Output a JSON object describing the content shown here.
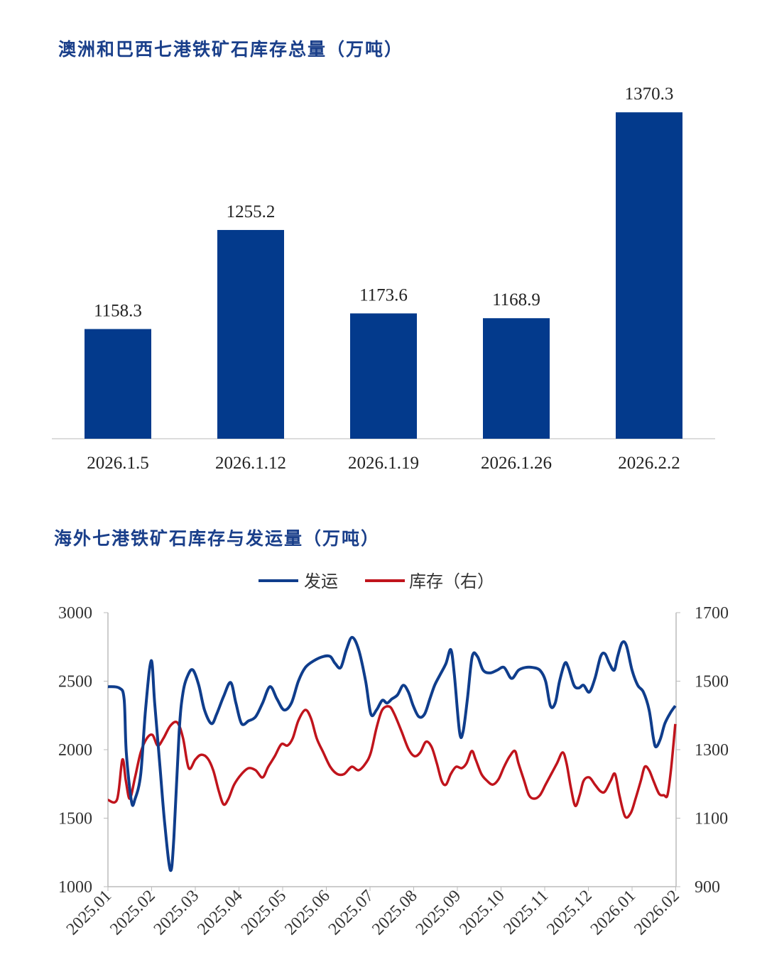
{
  "colors": {
    "bar": "#033a8c",
    "ship": "#0f3d8c",
    "stock": "#c0141c",
    "title": "#1a3f8a"
  },
  "chart_data": [
    {
      "type": "bar",
      "title": "澳洲和巴西七港铁矿石库存总量（万吨）",
      "categories": [
        "2026.1.5",
        "2026.1.12",
        "2026.1.19",
        "2026.1.26",
        "2026.2.2"
      ],
      "values": [
        1158.3,
        1255.2,
        1173.6,
        1168.9,
        1370.3
      ],
      "value_labels": [
        "1158.3",
        "1255.2",
        "1173.6",
        "1168.9",
        "1370.3"
      ],
      "ylim": [
        1051,
        1400
      ],
      "xlabel": "",
      "ylabel": ""
    },
    {
      "type": "line",
      "title": "海外七港铁矿石库存与发运量（万吨）",
      "legend": [
        "发运",
        "库存（右）"
      ],
      "legend_position": "top-center",
      "x_ticks": [
        "2025.01",
        "2025.02",
        "2025.03",
        "2025.04",
        "2025.05",
        "2025.06",
        "2025.07",
        "2025.08",
        "2025.09",
        "2025.10",
        "2025.11",
        "2025.12",
        "2026.01",
        "2026.02"
      ],
      "y_left": {
        "ticks": [
          "3000",
          "2500",
          "2000",
          "1500",
          "1000"
        ],
        "lim": [
          1000,
          3000
        ]
      },
      "y_right": {
        "ticks": [
          "1700",
          "1500",
          "1300",
          "1100",
          "900"
        ],
        "lim": [
          900,
          1700
        ]
      },
      "x_unit": "months since 2025.01",
      "series": [
        {
          "name": "发运",
          "axis": "left",
          "points": [
            [
              0,
              2460
            ],
            [
              0.26,
              2450
            ],
            [
              0.37,
              2370
            ],
            [
              0.42,
              1980
            ],
            [
              0.54,
              1620
            ],
            [
              0.62,
              1640
            ],
            [
              0.75,
              1820
            ],
            [
              0.86,
              2290
            ],
            [
              0.99,
              2650
            ],
            [
              1.07,
              2340
            ],
            [
              1.19,
              1880
            ],
            [
              1.3,
              1460
            ],
            [
              1.43,
              1120
            ],
            [
              1.51,
              1360
            ],
            [
              1.63,
              2130
            ],
            [
              1.72,
              2420
            ],
            [
              1.84,
              2550
            ],
            [
              1.95,
              2580
            ],
            [
              2.08,
              2470
            ],
            [
              2.21,
              2290
            ],
            [
              2.37,
              2190
            ],
            [
              2.49,
              2260
            ],
            [
              2.65,
              2390
            ],
            [
              2.81,
              2490
            ],
            [
              2.93,
              2340
            ],
            [
              3.06,
              2190
            ],
            [
              3.22,
              2210
            ],
            [
              3.38,
              2240
            ],
            [
              3.54,
              2340
            ],
            [
              3.71,
              2460
            ],
            [
              3.87,
              2370
            ],
            [
              4.03,
              2290
            ],
            [
              4.2,
              2340
            ],
            [
              4.36,
              2500
            ],
            [
              4.52,
              2600
            ],
            [
              4.72,
              2650
            ],
            [
              4.93,
              2680
            ],
            [
              5.09,
              2680
            ],
            [
              5.2,
              2630
            ],
            [
              5.33,
              2600
            ],
            [
              5.46,
              2730
            ],
            [
              5.59,
              2820
            ],
            [
              5.74,
              2730
            ],
            [
              5.9,
              2500
            ],
            [
              6.02,
              2260
            ],
            [
              6.15,
              2290
            ],
            [
              6.28,
              2360
            ],
            [
              6.39,
              2340
            ],
            [
              6.5,
              2370
            ],
            [
              6.63,
              2400
            ],
            [
              6.76,
              2470
            ],
            [
              6.88,
              2420
            ],
            [
              6.99,
              2320
            ],
            [
              7.12,
              2240
            ],
            [
              7.25,
              2260
            ],
            [
              7.37,
              2370
            ],
            [
              7.48,
              2470
            ],
            [
              7.61,
              2550
            ],
            [
              7.74,
              2630
            ],
            [
              7.85,
              2730
            ],
            [
              7.93,
              2550
            ],
            [
              8.05,
              2130
            ],
            [
              8.13,
              2130
            ],
            [
              8.23,
              2370
            ],
            [
              8.34,
              2680
            ],
            [
              8.46,
              2680
            ],
            [
              8.59,
              2580
            ],
            [
              8.75,
              2560
            ],
            [
              8.91,
              2580
            ],
            [
              9.07,
              2600
            ],
            [
              9.24,
              2520
            ],
            [
              9.4,
              2580
            ],
            [
              9.56,
              2600
            ],
            [
              9.72,
              2600
            ],
            [
              9.89,
              2580
            ],
            [
              10.02,
              2500
            ],
            [
              10.13,
              2320
            ],
            [
              10.24,
              2340
            ],
            [
              10.34,
              2500
            ],
            [
              10.46,
              2630
            ],
            [
              10.54,
              2600
            ],
            [
              10.67,
              2470
            ],
            [
              10.78,
              2450
            ],
            [
              10.89,
              2470
            ],
            [
              11.02,
              2420
            ],
            [
              11.15,
              2520
            ],
            [
              11.28,
              2680
            ],
            [
              11.38,
              2700
            ],
            [
              11.48,
              2630
            ],
            [
              11.59,
              2580
            ],
            [
              11.67,
              2680
            ],
            [
              11.77,
              2780
            ],
            [
              11.87,
              2760
            ],
            [
              12.0,
              2580
            ],
            [
              12.13,
              2470
            ],
            [
              12.26,
              2420
            ],
            [
              12.39,
              2290
            ],
            [
              12.49,
              2080
            ],
            [
              12.55,
              2020
            ],
            [
              12.65,
              2080
            ],
            [
              12.75,
              2190
            ],
            [
              12.88,
              2270
            ],
            [
              12.99,
              2320
            ]
          ]
        },
        {
          "name": "库存（右）",
          "axis": "right",
          "points": [
            [
              0,
              1153
            ],
            [
              0.21,
              1155
            ],
            [
              0.33,
              1271
            ],
            [
              0.41,
              1209
            ],
            [
              0.5,
              1157
            ],
            [
              0.62,
              1219
            ],
            [
              0.75,
              1292
            ],
            [
              0.89,
              1333
            ],
            [
              1.02,
              1343
            ],
            [
              1.14,
              1312
            ],
            [
              1.27,
              1333
            ],
            [
              1.43,
              1370
            ],
            [
              1.59,
              1379
            ],
            [
              1.72,
              1333
            ],
            [
              1.85,
              1246
            ],
            [
              2.0,
              1271
            ],
            [
              2.13,
              1285
            ],
            [
              2.28,
              1275
            ],
            [
              2.41,
              1240
            ],
            [
              2.54,
              1178
            ],
            [
              2.65,
              1140
            ],
            [
              2.76,
              1157
            ],
            [
              2.89,
              1198
            ],
            [
              3.06,
              1229
            ],
            [
              3.22,
              1246
            ],
            [
              3.38,
              1240
            ],
            [
              3.54,
              1219
            ],
            [
              3.67,
              1250
            ],
            [
              3.82,
              1281
            ],
            [
              3.97,
              1316
            ],
            [
              4.11,
              1312
            ],
            [
              4.23,
              1333
            ],
            [
              4.36,
              1385
            ],
            [
              4.52,
              1416
            ],
            [
              4.65,
              1391
            ],
            [
              4.78,
              1333
            ],
            [
              4.93,
              1292
            ],
            [
              5.09,
              1250
            ],
            [
              5.25,
              1229
            ],
            [
              5.41,
              1229
            ],
            [
              5.58,
              1250
            ],
            [
              5.74,
              1240
            ],
            [
              5.9,
              1260
            ],
            [
              6.02,
              1292
            ],
            [
              6.15,
              1364
            ],
            [
              6.28,
              1416
            ],
            [
              6.44,
              1426
            ],
            [
              6.55,
              1406
            ],
            [
              6.72,
              1354
            ],
            [
              6.88,
              1302
            ],
            [
              7.02,
              1281
            ],
            [
              7.15,
              1292
            ],
            [
              7.28,
              1323
            ],
            [
              7.41,
              1308
            ],
            [
              7.53,
              1260
            ],
            [
              7.64,
              1209
            ],
            [
              7.74,
              1198
            ],
            [
              7.85,
              1229
            ],
            [
              7.97,
              1250
            ],
            [
              8.1,
              1246
            ],
            [
              8.21,
              1260
            ],
            [
              8.33,
              1296
            ],
            [
              8.42,
              1271
            ],
            [
              8.55,
              1229
            ],
            [
              8.68,
              1209
            ],
            [
              8.81,
              1198
            ],
            [
              8.94,
              1213
            ],
            [
              9.07,
              1250
            ],
            [
              9.2,
              1281
            ],
            [
              9.32,
              1296
            ],
            [
              9.4,
              1260
            ],
            [
              9.53,
              1209
            ],
            [
              9.64,
              1167
            ],
            [
              9.76,
              1157
            ],
            [
              9.89,
              1167
            ],
            [
              10.02,
              1198
            ],
            [
              10.15,
              1229
            ],
            [
              10.28,
              1260
            ],
            [
              10.41,
              1292
            ],
            [
              10.5,
              1260
            ],
            [
              10.6,
              1188
            ],
            [
              10.7,
              1136
            ],
            [
              10.8,
              1167
            ],
            [
              10.89,
              1209
            ],
            [
              11.02,
              1219
            ],
            [
              11.15,
              1198
            ],
            [
              11.28,
              1178
            ],
            [
              11.38,
              1178
            ],
            [
              11.51,
              1209
            ],
            [
              11.61,
              1229
            ],
            [
              11.71,
              1167
            ],
            [
              11.84,
              1105
            ],
            [
              11.97,
              1115
            ],
            [
              12.08,
              1157
            ],
            [
              12.2,
              1209
            ],
            [
              12.29,
              1250
            ],
            [
              12.39,
              1240
            ],
            [
              12.49,
              1209
            ],
            [
              12.62,
              1171
            ],
            [
              12.73,
              1167
            ],
            [
              12.81,
              1167
            ],
            [
              12.89,
              1240
            ],
            [
              12.99,
              1375
            ]
          ]
        }
      ]
    }
  ]
}
